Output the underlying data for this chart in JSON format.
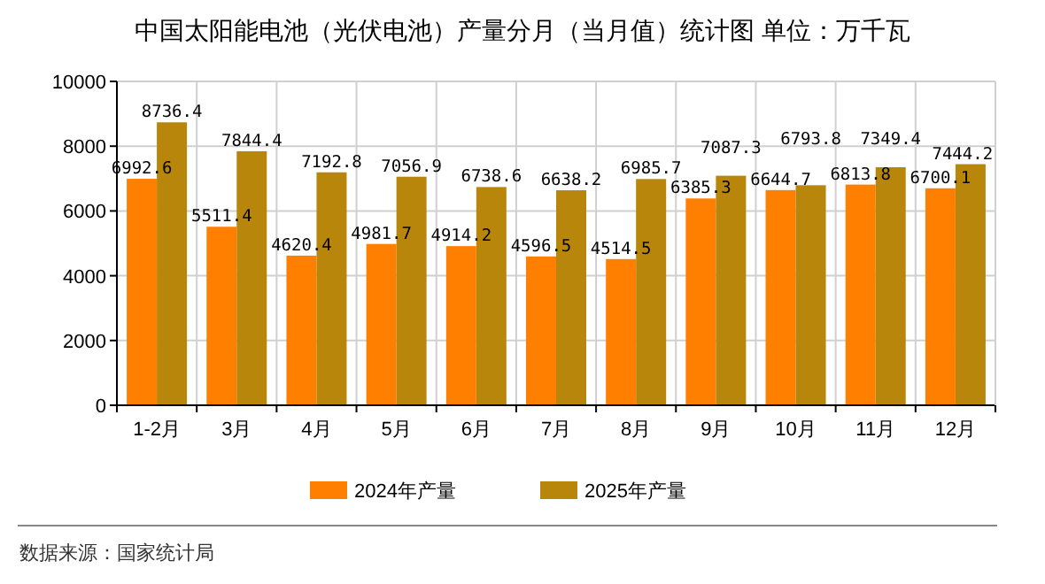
{
  "chart_data": {
    "type": "bar",
    "title": "中国太阳能电池（光伏电池）产量分月（当月值）统计图 单位：万千瓦",
    "categories": [
      "1-2月",
      "3月",
      "4月",
      "5月",
      "6月",
      "7月",
      "8月",
      "9月",
      "10月",
      "11月",
      "12月"
    ],
    "series": [
      {
        "name": "2024年产量",
        "color": "#ff7f00",
        "values": [
          6992.6,
          5511.4,
          4620.4,
          4981.7,
          4914.2,
          4596.5,
          4514.5,
          6385.3,
          6644.7,
          6813.8,
          6700.1
        ]
      },
      {
        "name": "2025年产量",
        "color": "#b8860b",
        "values": [
          8736.4,
          7844.4,
          7192.8,
          7056.9,
          6738.6,
          6638.2,
          6985.7,
          7087.3,
          6793.8,
          7349.4,
          7444.2
        ]
      }
    ],
    "ylim": [
      0,
      10000
    ],
    "yticks": [
      0,
      2000,
      4000,
      6000,
      8000,
      10000
    ],
    "grid": true,
    "legend": "bottom",
    "data_labels": true,
    "annotations": [
      "数据来源：国家统计局"
    ]
  }
}
